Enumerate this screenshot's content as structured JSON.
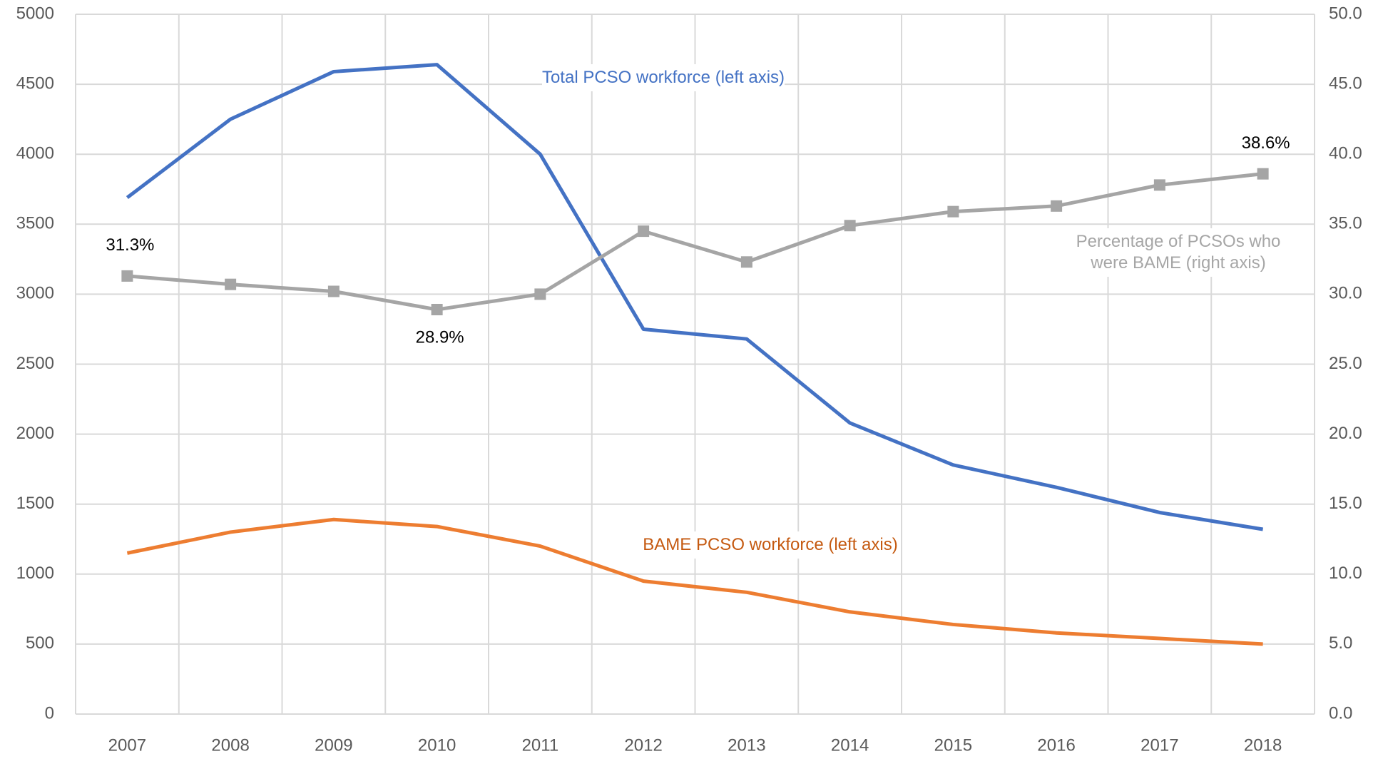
{
  "chart_data": {
    "type": "line",
    "categories": [
      "2007",
      "2008",
      "2009",
      "2010",
      "2011",
      "2012",
      "2013",
      "2014",
      "2015",
      "2016",
      "2017",
      "2018"
    ],
    "series": [
      {
        "name": "Total PCSO workforce (left axis)",
        "color": "#4472c4",
        "axis": "y",
        "values": [
          3690,
          4250,
          4590,
          4640,
          4000,
          2750,
          2680,
          2080,
          1780,
          1620,
          1440,
          1320
        ]
      },
      {
        "name": "BAME PCSO workforce (left axis)",
        "color": "#ed7d31",
        "axis": "y",
        "values": [
          1150,
          1300,
          1390,
          1340,
          1200,
          950,
          870,
          730,
          640,
          580,
          540,
          500
        ]
      },
      {
        "name": "Percentage of PCSOs who were BAME (right axis)",
        "color": "#a5a5a5",
        "axis": "y2",
        "marker": "square",
        "values": [
          31.3,
          30.7,
          30.2,
          28.9,
          30.0,
          34.5,
          32.3,
          34.9,
          35.9,
          36.3,
          37.8,
          38.6
        ],
        "value_labels": [
          "31.3%",
          null,
          null,
          "28.9%",
          null,
          null,
          null,
          null,
          null,
          null,
          null,
          "38.6%"
        ]
      }
    ],
    "ylim": [
      0,
      5000
    ],
    "yticks": [
      0,
      500,
      1000,
      1500,
      2000,
      2500,
      3000,
      3500,
      4000,
      4500,
      5000
    ],
    "y2lim": [
      0,
      50
    ],
    "y2ticks": [
      {
        "value": 0,
        "label": "0.0"
      },
      {
        "value": 5,
        "label": "5.0"
      },
      {
        "value": 10,
        "label": "10.0"
      },
      {
        "value": 15,
        "label": "15.0"
      },
      {
        "value": 20,
        "label": "20.0"
      },
      {
        "value": 25,
        "label": "25.0"
      },
      {
        "value": 30,
        "label": "30.0"
      },
      {
        "value": 35,
        "label": "35.0"
      },
      {
        "value": 40,
        "label": "40.0"
      },
      {
        "value": 45,
        "label": "45.0"
      },
      {
        "value": 50,
        "label": "50.0"
      }
    ],
    "grid": true
  }
}
